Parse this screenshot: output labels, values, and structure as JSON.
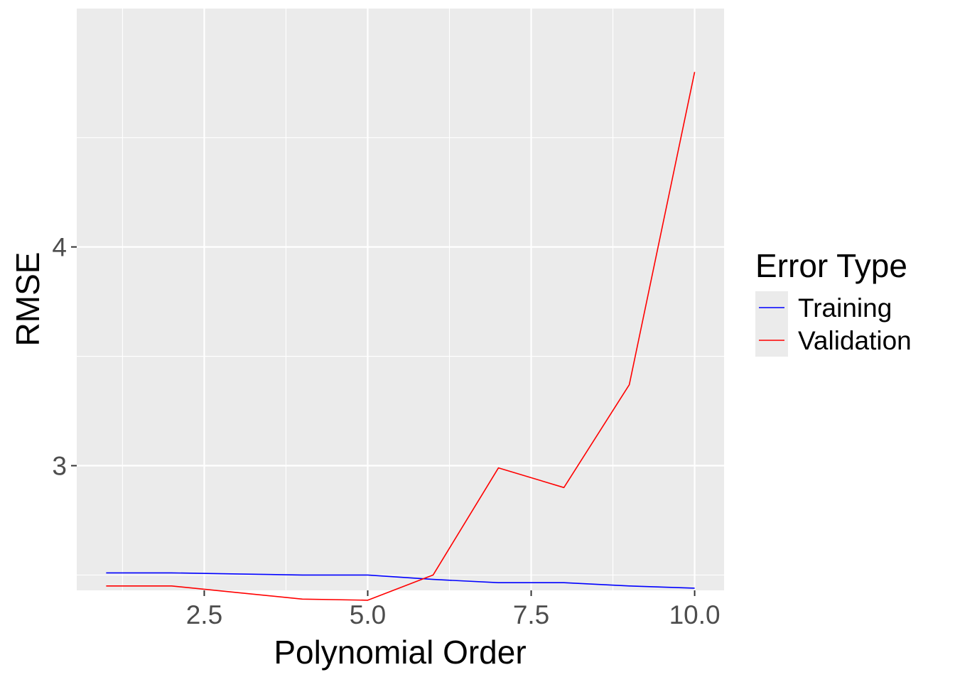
{
  "chart_data": {
    "type": "line",
    "title": "",
    "xlabel": "Polynomial Order",
    "ylabel": "RMSE",
    "xlim": [
      0.55,
      10.45
    ],
    "ylim": [
      2.43,
      5.09
    ],
    "x_ticks": [
      2.5,
      5.0,
      7.5,
      10.0
    ],
    "x_tick_labels": [
      "2.5",
      "5.0",
      "7.5",
      "10.0"
    ],
    "y_ticks": [
      3,
      4
    ],
    "y_tick_labels": [
      "3",
      "4"
    ],
    "grid": true,
    "legend": {
      "title": "Error Type",
      "position": "right"
    },
    "x": [
      1,
      2,
      3,
      4,
      5,
      6,
      7,
      8,
      9,
      10
    ],
    "series": [
      {
        "name": "Training",
        "color": "#0000ff",
        "values": [
          2.51,
          2.51,
          2.505,
          2.5,
          2.5,
          2.48,
          2.465,
          2.465,
          2.45,
          2.44
        ]
      },
      {
        "name": "Validation",
        "color": "#ff0000",
        "values": [
          2.45,
          2.45,
          2.42,
          2.39,
          2.385,
          2.5,
          2.99,
          2.9,
          3.37,
          4.8
        ]
      }
    ]
  }
}
